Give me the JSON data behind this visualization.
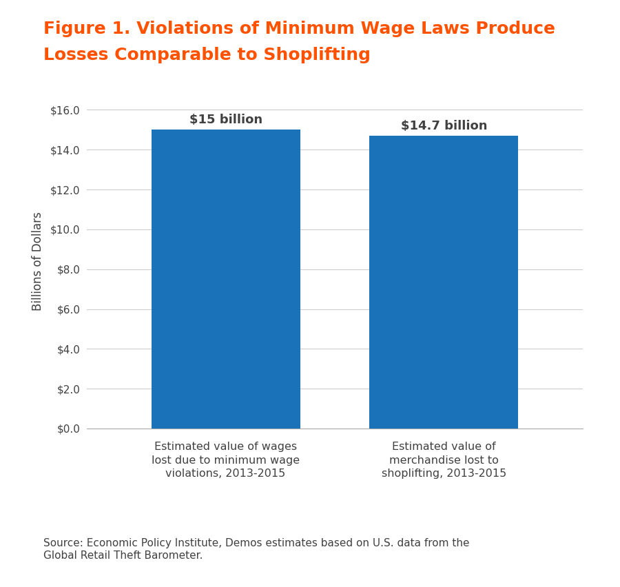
{
  "title_line1": "Figure 1. Violations of Minimum Wage Laws Produce",
  "title_line2": "Losses Comparable to Shoplifting",
  "title_color": "#FF5200",
  "bar_labels": [
    "Estimated value of wages\nlost due to minimum wage\nviolations, 2013-2015",
    "Estimated value of\nmerchandise lost to\nshoplifting, 2013-2015"
  ],
  "bar_values": [
    15.0,
    14.7
  ],
  "bar_annotations": [
    "$15 billion",
    "$14.7 billion"
  ],
  "bar_color": "#1A72B8",
  "ylabel": "Billions of Dollars",
  "ylim": [
    0,
    16.8
  ],
  "yticks": [
    0.0,
    2.0,
    4.0,
    6.0,
    8.0,
    10.0,
    12.0,
    14.0,
    16.0
  ],
  "ytick_labels": [
    "$0.0",
    "$2.0",
    "$4.0",
    "$6.0",
    "$8.0",
    "$10.0",
    "$12.0",
    "$14.0",
    "$16.0"
  ],
  "source_text": "Source: Economic Policy Institute, Demos estimates based on U.S. data from the\nGlobal Retail Theft Barometer.",
  "background_color": "#FFFFFF",
  "text_color": "#404040",
  "annotation_fontsize": 13,
  "ylabel_fontsize": 12,
  "ytick_fontsize": 11,
  "xlabel_fontsize": 11.5,
  "source_fontsize": 11,
  "title_fontsize": 18
}
